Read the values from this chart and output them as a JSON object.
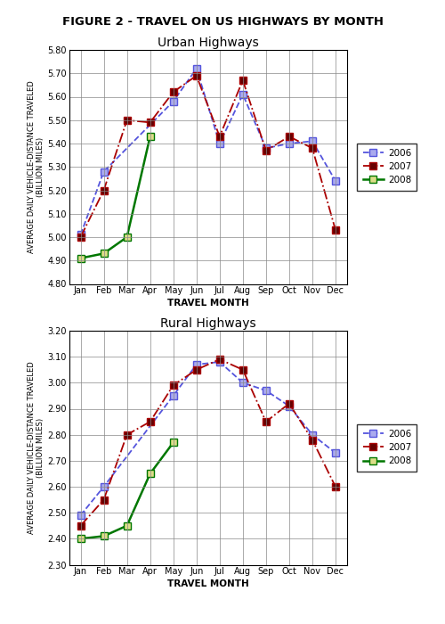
{
  "figure_title": "FIGURE 2 - TRAVEL ON US HIGHWAYS BY MONTH",
  "months": [
    "Jan",
    "Feb",
    "Mar",
    "Apr",
    "May",
    "Jun",
    "Jul",
    "Aug",
    "Sep",
    "Oct",
    "Nov",
    "Dec"
  ],
  "urban": {
    "title": "Urban Highways",
    "ylabel": "AVERAGE DAILY VEHICLE-DISTANCE TRAVELED\n(BILLION MILES)",
    "xlabel": "TRAVEL MONTH",
    "ylim": [
      4.8,
      5.8
    ],
    "yticks": [
      4.8,
      4.9,
      5.0,
      5.1,
      5.2,
      5.3,
      5.4,
      5.5,
      5.6,
      5.7,
      5.8
    ],
    "2006": [
      5.01,
      5.28,
      null,
      null,
      5.58,
      5.72,
      5.4,
      5.61,
      5.38,
      5.4,
      5.41,
      5.24
    ],
    "2007": [
      5.0,
      5.2,
      5.5,
      5.49,
      5.62,
      5.69,
      5.43,
      5.67,
      5.37,
      5.43,
      5.38,
      5.03
    ],
    "2008": [
      4.91,
      4.93,
      5.0,
      5.43,
      null,
      null,
      null,
      null,
      null,
      null,
      null,
      null
    ]
  },
  "rural": {
    "title": "Rural Highways",
    "ylabel": "AVERAGE DAILY VEHICLE-DISTANCE TRAVELED\n(BILLION MILES)",
    "xlabel": "TRAVEL MONTH",
    "ylim": [
      2.3,
      3.2
    ],
    "yticks": [
      2.3,
      2.4,
      2.5,
      2.6,
      2.7,
      2.8,
      2.9,
      3.0,
      3.1,
      3.2
    ],
    "2006": [
      2.49,
      2.6,
      null,
      null,
      2.95,
      3.07,
      3.08,
      3.0,
      2.97,
      2.91,
      2.8,
      2.73
    ],
    "2007": [
      2.45,
      2.55,
      2.8,
      2.85,
      2.99,
      3.05,
      3.09,
      3.05,
      2.85,
      2.92,
      2.78,
      2.6
    ],
    "2008": [
      2.4,
      2.41,
      2.45,
      2.65,
      2.77,
      null,
      null,
      null,
      null,
      null,
      null,
      null
    ]
  },
  "color_2006": "#5555dd",
  "color_2007": "#aa0000",
  "color_2008": "#007700",
  "mfc_2006": "#aaaaee",
  "mfc_2007": "#660000",
  "mfc_2008": "#dddd88"
}
